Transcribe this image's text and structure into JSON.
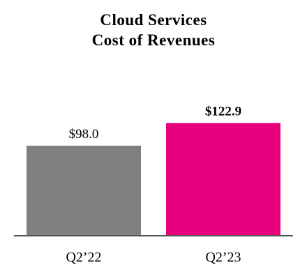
{
  "chart_data": {
    "type": "bar",
    "title_lines": [
      "Cloud Services",
      "Cost of Revenues"
    ],
    "categories": [
      "Q2’22",
      "Q2’23"
    ],
    "values": [
      98.0,
      122.9
    ],
    "data_labels": [
      "$98.0",
      "$122.9"
    ],
    "bold_labels": [
      false,
      true
    ],
    "colors": [
      "#808080",
      "#E6007E"
    ],
    "axis_color": "#555555",
    "ylim": [
      0,
      130
    ],
    "xlabel": "",
    "ylabel": "",
    "grid": false,
    "legend": "none"
  }
}
